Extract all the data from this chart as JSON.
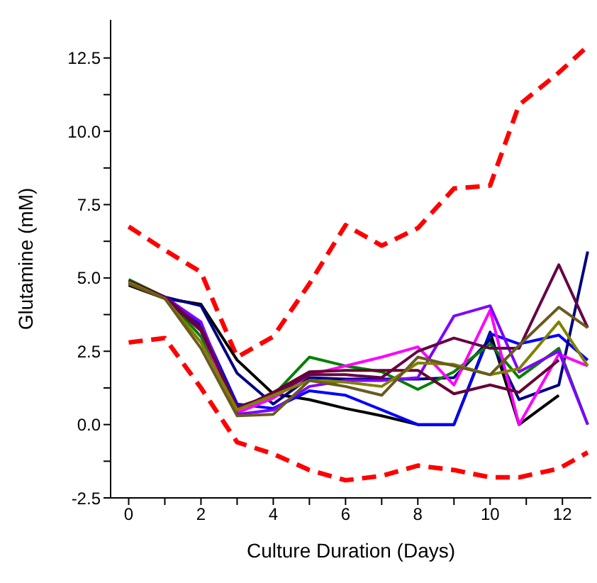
{
  "chart_data": {
    "type": "line",
    "xlabel": "Culture Duration (Days)",
    "ylabel": "Glutamine (mM)",
    "x": [
      0,
      1,
      2,
      3,
      4,
      5,
      6,
      7,
      8,
      9,
      10,
      10.8,
      11.9,
      12.7
    ],
    "xlim": [
      -0.5,
      12.8
    ],
    "ylim": [
      -2.5,
      13.8
    ],
    "xticks": [
      0,
      {
        "value": 1,
        "label": null
      },
      2,
      {
        "value": 3,
        "label": null
      },
      4,
      {
        "value": 5,
        "label": null
      },
      6,
      {
        "value": 7,
        "label": null
      },
      8,
      {
        "value": 9,
        "label": null
      },
      10,
      {
        "value": 11,
        "label": null
      },
      12
    ],
    "yticks": [
      -2.5,
      {
        "value": -1.25,
        "label": null
      },
      {
        "value": 0,
        "label": "0.0"
      },
      {
        "value": 1.25,
        "label": null
      },
      2.5,
      {
        "value": 3.75,
        "label": null
      },
      {
        "value": 5,
        "label": "5.0"
      },
      {
        "value": 6.25,
        "label": null
      },
      7.5,
      {
        "value": 8.75,
        "label": null
      },
      {
        "value": 10,
        "label": "10.0"
      },
      {
        "value": 11.25,
        "label": null
      },
      12.5
    ],
    "grid": false,
    "legend": false,
    "marker": "none",
    "series": [
      {
        "color": "#ff0000",
        "line_style": "dashed",
        "values": [
          6.75,
          5.95,
          5.2,
          2.3,
          3.0,
          4.8,
          6.8,
          6.1,
          6.7,
          8.05,
          8.15,
          10.9,
          12.0,
          12.9
        ]
      },
      {
        "color": "#ff0000",
        "line_style": "dashed",
        "values": [
          2.8,
          2.95,
          1.25,
          -0.6,
          -1.0,
          -1.55,
          -1.9,
          -1.75,
          -1.4,
          -1.55,
          -1.8,
          -1.8,
          -1.5,
          -0.95
        ]
      },
      {
        "color": "#000000",
        "values": [
          4.75,
          4.3,
          4.1,
          2.2,
          1.05,
          0.85,
          0.55,
          0.3,
          0,
          0,
          3.15,
          0,
          1.0,
          null
        ]
      },
      {
        "color": "#0000ff",
        "values": [
          4.85,
          4.35,
          3.4,
          0.7,
          0.55,
          1.15,
          1.0,
          0.5,
          0,
          0,
          3.1,
          2.75,
          3.05,
          2.2
        ]
      },
      {
        "color": "#000080",
        "values": [
          4.8,
          4.35,
          4.05,
          1.75,
          0.7,
          1.6,
          1.55,
          1.55,
          1.55,
          1.6,
          2.9,
          0.85,
          1.35,
          5.9
        ]
      },
      {
        "color": "#008000",
        "values": [
          4.95,
          4.35,
          3.0,
          0.55,
          1.0,
          2.3,
          2.0,
          1.8,
          1.2,
          1.8,
          2.75,
          1.6,
          2.6,
          0
        ]
      },
      {
        "color": "#ff00ff",
        "values": [
          4.85,
          4.35,
          3.2,
          0.4,
          0.9,
          1.7,
          2.0,
          2.3,
          2.65,
          1.35,
          3.9,
          0,
          2.4,
          2.0
        ]
      },
      {
        "color": "#8000ff",
        "values": [
          4.85,
          4.35,
          3.5,
          0.35,
          0.5,
          1.3,
          1.5,
          1.5,
          1.6,
          3.7,
          4.05,
          1.8,
          2.5,
          0
        ]
      },
      {
        "color": "#660033",
        "values": [
          4.9,
          4.35,
          3.3,
          0.5,
          1.1,
          1.8,
          1.85,
          1.85,
          1.85,
          1.05,
          1.35,
          1.1,
          2.2,
          null
        ]
      },
      {
        "color": "#660044",
        "values": [
          4.85,
          4.3,
          3.2,
          0.6,
          1.0,
          1.7,
          1.7,
          1.6,
          2.5,
          2.95,
          2.6,
          2.6,
          5.45,
          3.3
        ]
      },
      {
        "color": "#808000",
        "values": [
          4.85,
          4.3,
          2.8,
          0.5,
          1.0,
          1.5,
          1.45,
          1.3,
          2.1,
          2.05,
          1.7,
          1.9,
          3.5,
          2.0
        ]
      },
      {
        "color": "#6b5a1e",
        "values": [
          4.8,
          4.3,
          2.6,
          0.3,
          0.35,
          1.5,
          1.3,
          1.0,
          2.3,
          2.0,
          1.7,
          2.7,
          4.0,
          3.3
        ]
      }
    ]
  }
}
